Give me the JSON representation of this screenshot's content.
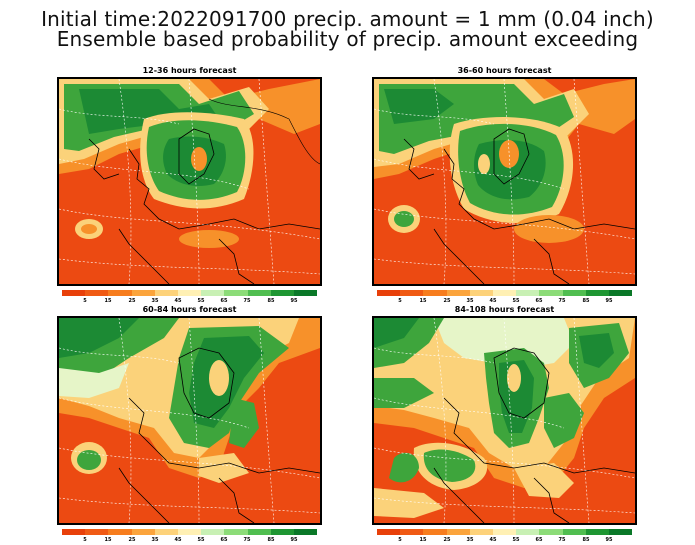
{
  "title_line1": "Initial time:2022091700 precip. amount = 1 mm (0.04 inch)",
  "title_line2": "Ensemble based probability of precip. amount exceeding",
  "panels": [
    {
      "title": "12-36 hours forecast",
      "wet_pattern": "north-band"
    },
    {
      "title": "36-60 hours forecast",
      "wet_pattern": "north-band"
    },
    {
      "title": "60-84 hours forecast",
      "wet_pattern": "scandinavia-central"
    },
    {
      "title": "84-108 hours forecast",
      "wet_pattern": "scandinavia-central"
    }
  ],
  "colorbar": {
    "labels": [
      "5",
      "15",
      "25",
      "35",
      "45",
      "55",
      "65",
      "75",
      "85",
      "95"
    ],
    "colors": [
      "#e8400a",
      "#f05a14",
      "#f77d1e",
      "#fba43c",
      "#fdd27a",
      "#fff0b4",
      "#c8f0b4",
      "#8cdc78",
      "#50be50",
      "#1e9632",
      "#0a7828"
    ]
  },
  "colors": {
    "dry": "#ec4a12",
    "low": "#f7912a",
    "mid": "#fbd27a",
    "pale": "#e6f5c8",
    "wet": "#3ea53c",
    "very_wet": "#1c8a34",
    "coast": "#000000",
    "grid": "#ffffff"
  }
}
